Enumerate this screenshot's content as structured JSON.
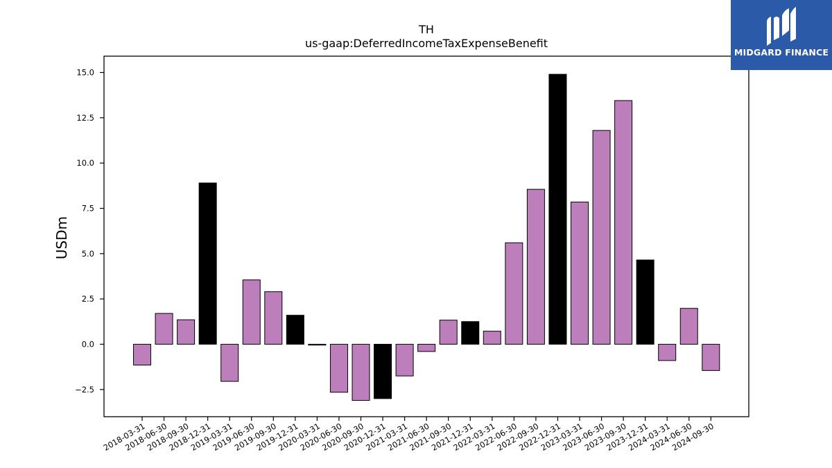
{
  "brand": {
    "name": "MIDGARD FINANCE",
    "logo_icon": "midgard-m-logo-icon",
    "color": "#2a5aa8"
  },
  "colors": {
    "quarter_bar": "#bc7fbc",
    "year_end_bar": "#000000",
    "edge": "#000000"
  },
  "chart_data": {
    "type": "bar",
    "title": "TH",
    "subtitle": "us-gaap:DeferredIncomeTaxExpenseBenefit",
    "xlabel": "",
    "ylabel": "USDm",
    "ylim": [
      -4.0,
      15.9
    ],
    "yticks": [
      -2.5,
      0.0,
      2.5,
      5.0,
      7.5,
      10.0,
      12.5,
      15.0
    ],
    "ytick_labels": [
      "−2.5",
      "0.0",
      "2.5",
      "5.0",
      "7.5",
      "10.0",
      "12.5",
      "15.0"
    ],
    "grid": false,
    "categories": [
      "2018-03-31",
      "2018-06-30",
      "2018-09-30",
      "2018-12-31",
      "2019-03-31",
      "2019-06-30",
      "2019-09-30",
      "2019-12-31",
      "2020-03-31",
      "2020-06-30",
      "2020-09-30",
      "2020-12-31",
      "2021-03-31",
      "2021-06-30",
      "2021-09-30",
      "2021-12-31",
      "2022-03-31",
      "2022-06-30",
      "2022-09-30",
      "2022-12-31",
      "2023-03-31",
      "2023-06-30",
      "2023-09-30",
      "2023-12-31",
      "2024-03-31",
      "2024-06-30",
      "2024-09-30"
    ],
    "values": [
      -1.15,
      1.7,
      1.35,
      8.9,
      -2.05,
      3.55,
      2.9,
      1.6,
      -0.05,
      -2.65,
      -3.1,
      -3.0,
      -1.75,
      -0.4,
      1.33,
      1.25,
      0.72,
      5.6,
      8.55,
      14.9,
      7.85,
      11.8,
      13.45,
      4.65,
      -0.9,
      1.98,
      -1.45
    ],
    "fiscal_year_end": [
      false,
      false,
      false,
      true,
      false,
      false,
      false,
      true,
      false,
      false,
      false,
      true,
      false,
      false,
      false,
      true,
      false,
      false,
      false,
      true,
      false,
      false,
      false,
      true,
      false,
      false,
      false
    ]
  }
}
